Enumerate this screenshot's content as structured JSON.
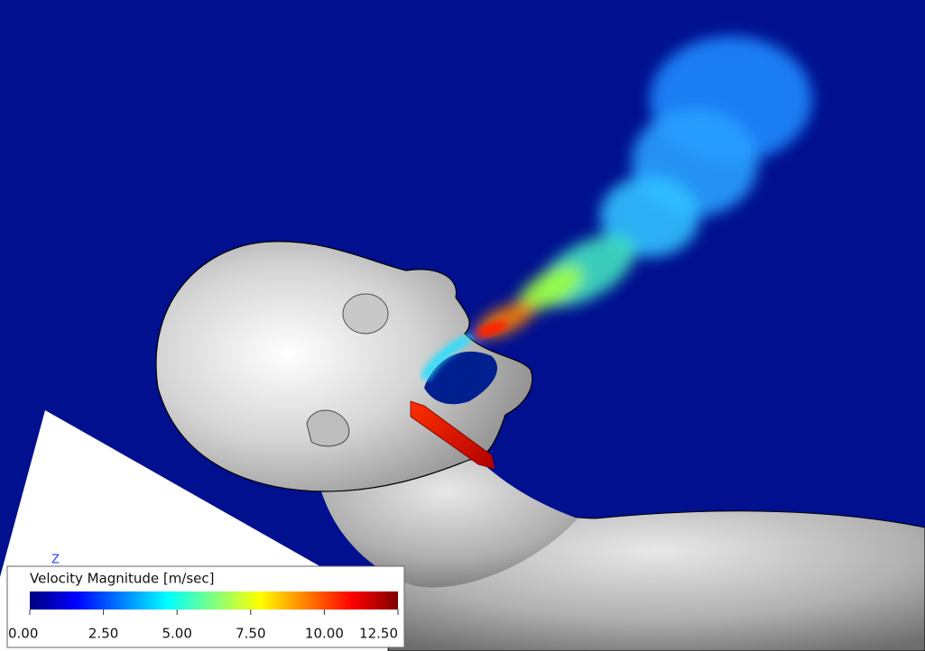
{
  "axis_label": "Z",
  "colorbar": {
    "title": "Velocity Magnitude [m/sec]",
    "range": [
      0,
      12.5
    ],
    "ticks": [
      {
        "value": 0,
        "label": "0.00"
      },
      {
        "value": 2.5,
        "label": "2.50"
      },
      {
        "value": 5,
        "label": "5.00"
      },
      {
        "value": 7.5,
        "label": "7.50"
      },
      {
        "value": 10,
        "label": "10.00"
      },
      {
        "value": 12.5,
        "label": "12.50"
      }
    ],
    "colors": [
      "#00007f",
      "#0000ff",
      "#0080ff",
      "#00ffff",
      "#80ff80",
      "#ffff00",
      "#ff8000",
      "#ff0000",
      "#7f0000"
    ]
  }
}
